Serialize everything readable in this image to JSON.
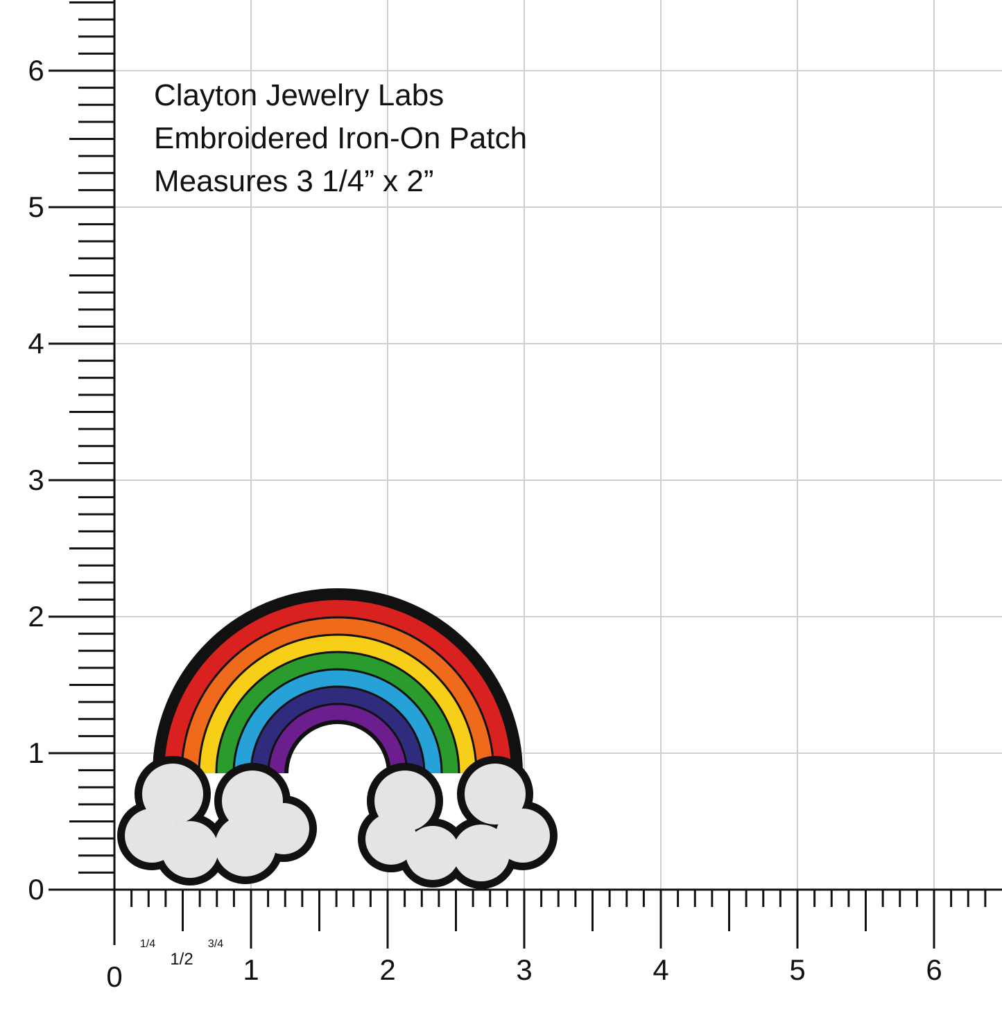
{
  "caption": [
    "Clayton Jewelry Labs",
    "Embroidered Iron-On Patch",
    "Measures 3 1/4” x 2”"
  ],
  "y_axis_labels": [
    "0",
    "1",
    "2",
    "3",
    "4",
    "5",
    "6"
  ],
  "x_axis_labels": [
    "0",
    "1",
    "2",
    "3",
    "4",
    "5",
    "6"
  ],
  "fraction_labels": [
    "1/4",
    "1/2",
    "3/4"
  ]
}
